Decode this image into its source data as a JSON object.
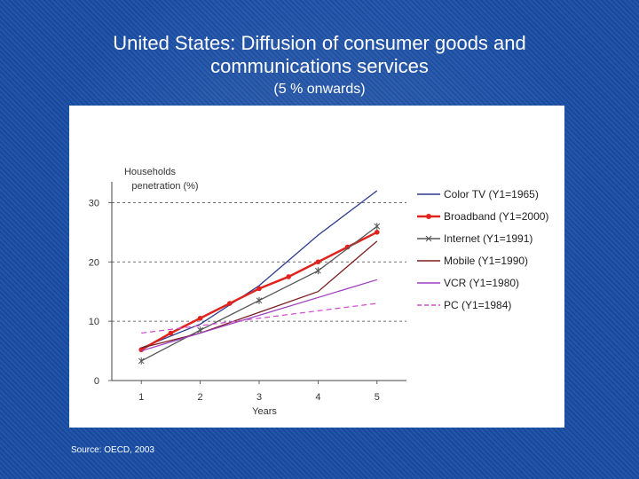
{
  "slide": {
    "title_line1": "United States: Diffusion of consumer goods and",
    "title_line2": "communications services",
    "subtitle": "(5 % onwards)",
    "source": "Source: OECD, 2003"
  },
  "chart_data": {
    "type": "line",
    "title": "",
    "ylabel_line1": "Households",
    "ylabel_line2": "penetration (%)",
    "xlabel": "Years",
    "x": [
      1,
      2,
      3,
      4,
      5
    ],
    "xlim": [
      0.5,
      5.5
    ],
    "ylim": [
      0,
      32
    ],
    "yticks": [
      0,
      10,
      20,
      30
    ],
    "grid": "dashed horizontal",
    "legend_position": "right",
    "series": [
      {
        "name": "Color TV (Y1=1965)",
        "color": "#2b3a8c",
        "marker": "none",
        "dash": "solid",
        "points": [
          [
            1,
            5.5
          ],
          [
            2,
            9.5
          ],
          [
            3,
            16
          ],
          [
            4,
            24.5
          ],
          [
            5,
            32
          ]
        ]
      },
      {
        "name": "Broadband (Y1=2000)",
        "color": "#e0231d",
        "marker": "dot",
        "dash": "solid",
        "points": [
          [
            1,
            5.2
          ],
          [
            1.5,
            8
          ],
          [
            2,
            10.5
          ],
          [
            2.5,
            13
          ],
          [
            3,
            15.5
          ],
          [
            3.5,
            17.5
          ],
          [
            4,
            20
          ],
          [
            4.5,
            22.5
          ],
          [
            5,
            25
          ]
        ]
      },
      {
        "name": "Internet (Y1=1991)",
        "color": "#555555",
        "marker": "star",
        "dash": "solid",
        "points": [
          [
            1,
            3.3
          ],
          [
            2,
            8.5
          ],
          [
            3,
            13.5
          ],
          [
            4,
            18.5
          ],
          [
            5,
            26
          ]
        ]
      },
      {
        "name": "Mobile (Y1=1990)",
        "color": "#7a1f1f",
        "marker": "none",
        "dash": "solid",
        "points": [
          [
            1,
            5.5
          ],
          [
            2,
            8
          ],
          [
            3,
            11.5
          ],
          [
            4,
            15
          ],
          [
            5,
            23.5
          ]
        ]
      },
      {
        "name": "VCR (Y1=1980)",
        "color": "#9b3fc0",
        "marker": "none",
        "dash": "solid",
        "points": [
          [
            1,
            5
          ],
          [
            5,
            17
          ]
        ]
      },
      {
        "name": "PC (Y1=1984)",
        "color": "#d04fd0",
        "marker": "none",
        "dash": "dashed",
        "points": [
          [
            1,
            8
          ],
          [
            5,
            13
          ]
        ]
      }
    ]
  }
}
